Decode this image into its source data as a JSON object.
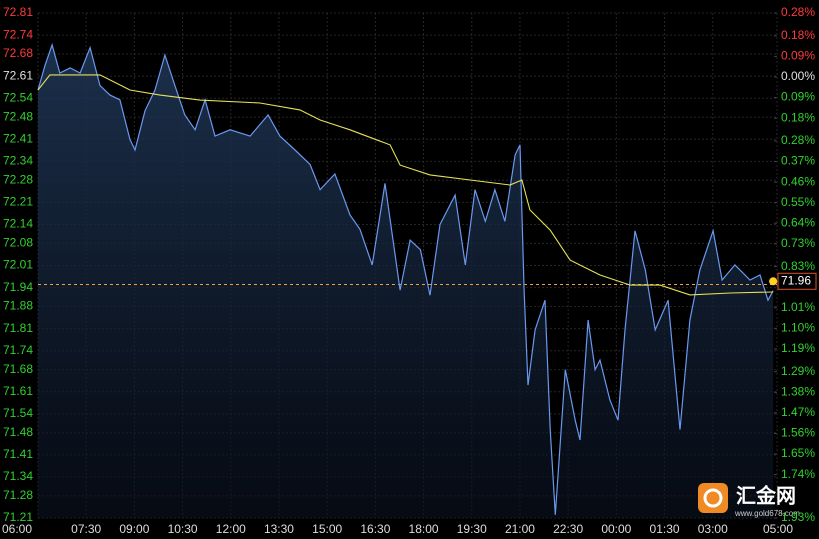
{
  "chart_data": {
    "type": "line",
    "xlim": [
      6,
      29
    ],
    "xticks": [
      {
        "value": 6,
        "label": "06:00"
      },
      {
        "value": 7.5,
        "label": "07:30"
      },
      {
        "value": 9,
        "label": "09:00"
      },
      {
        "value": 10.5,
        "label": "10:30"
      },
      {
        "value": 12,
        "label": "12:00"
      },
      {
        "value": 13.5,
        "label": "13:30"
      },
      {
        "value": 15,
        "label": "15:00"
      },
      {
        "value": 16.5,
        "label": "16:30"
      },
      {
        "value": 18,
        "label": "18:00"
      },
      {
        "value": 19.5,
        "label": "19:30"
      },
      {
        "value": 21,
        "label": "21:00"
      },
      {
        "value": 22.5,
        "label": "22:30"
      },
      {
        "value": 24,
        "label": "00:00"
      },
      {
        "value": 25.5,
        "label": "01:30"
      },
      {
        "value": 27,
        "label": "03:00"
      },
      {
        "value": 29,
        "label": "05:00"
      }
    ],
    "ylim": [
      71.21,
      72.81
    ],
    "yticks": [
      72.81,
      72.74,
      72.68,
      72.61,
      72.54,
      72.48,
      72.41,
      72.34,
      72.28,
      72.21,
      72.14,
      72.08,
      72.01,
      71.94,
      71.88,
      71.81,
      71.74,
      71.68,
      71.61,
      71.54,
      71.48,
      71.41,
      71.34,
      71.28,
      71.21
    ],
    "y2lim": [
      -1.93,
      0.28
    ],
    "y2ticks": [
      {
        "value": 0.28,
        "label": "0.28%"
      },
      {
        "value": 0.18,
        "label": "0.18%"
      },
      {
        "value": 0.09,
        "label": "0.09%"
      },
      {
        "value": 0,
        "label": "0.00%"
      },
      {
        "value": -0.09,
        "label": "0.09%"
      },
      {
        "value": -0.18,
        "label": "0.18%"
      },
      {
        "value": -0.28,
        "label": "0.28%"
      },
      {
        "value": -0.37,
        "label": "0.37%"
      },
      {
        "value": -0.46,
        "label": "0.46%"
      },
      {
        "value": -0.55,
        "label": "0.55%"
      },
      {
        "value": -0.64,
        "label": "0.64%"
      },
      {
        "value": -0.73,
        "label": "0.73%"
      },
      {
        "value": -0.83,
        "label": "0.83%"
      },
      {
        "value": -1.01,
        "label": "1.01%"
      },
      {
        "value": -1.1,
        "label": "1.10%"
      },
      {
        "value": -1.19,
        "label": "1.19%"
      },
      {
        "value": -1.29,
        "label": "1.29%"
      },
      {
        "value": -1.38,
        "label": "1.38%"
      },
      {
        "value": -1.47,
        "label": "1.47%"
      },
      {
        "value": -1.56,
        "label": "1.56%"
      },
      {
        "value": -1.65,
        "label": "1.65%"
      },
      {
        "value": -1.74,
        "label": "1.74%"
      },
      {
        "value": -1.93,
        "label": "1.93%"
      }
    ],
    "grid": true,
    "up_color": "#ff3b3b",
    "down_color": "#2fd22f",
    "flat_color": "#e0e0e0",
    "series": [
      {
        "name": "price",
        "color": "#6a98f0",
        "x": [
          6.0,
          6.22,
          6.44,
          6.68,
          7.0,
          7.31,
          7.62,
          7.93,
          8.24,
          8.55,
          8.86,
          9.02,
          9.33,
          9.64,
          9.95,
          10.26,
          10.57,
          10.89,
          11.2,
          11.51,
          11.98,
          12.6,
          13.16,
          13.53,
          14.0,
          14.47,
          14.78,
          15.24,
          15.71,
          16.02,
          16.4,
          16.8,
          17.27,
          17.58,
          17.9,
          18.2,
          18.51,
          18.98,
          19.3,
          19.6,
          19.92,
          20.22,
          20.53,
          20.85,
          21.0,
          21.13,
          21.25,
          21.47,
          21.78,
          21.94,
          22.1,
          22.41,
          22.72,
          22.87,
          23.12,
          23.34,
          23.49,
          23.8,
          24.05,
          24.27,
          24.58,
          24.9,
          25.21,
          25.61,
          25.98,
          26.29,
          26.6,
          27.01,
          27.29,
          27.69,
          28.16,
          28.47,
          28.72,
          28.88
        ],
        "values": [
          72.566,
          72.645,
          72.709,
          72.62,
          72.636,
          72.62,
          72.7,
          72.58,
          72.55,
          72.535,
          72.41,
          72.376,
          72.5,
          72.566,
          72.677,
          72.58,
          72.487,
          72.44,
          72.535,
          72.42,
          72.44,
          72.42,
          72.487,
          72.42,
          72.376,
          72.33,
          72.25,
          72.3,
          72.17,
          72.125,
          72.012,
          72.27,
          71.932,
          72.09,
          72.06,
          71.916,
          72.14,
          72.233,
          72.012,
          72.25,
          72.15,
          72.25,
          72.15,
          72.36,
          72.392,
          71.93,
          71.631,
          71.806,
          71.9,
          71.49,
          71.22,
          71.68,
          71.52,
          71.457,
          71.837,
          71.68,
          71.71,
          71.584,
          71.52,
          71.806,
          72.12,
          71.996,
          71.806,
          71.9,
          71.49,
          71.837,
          71.996,
          72.12,
          71.964,
          72.012,
          71.964,
          71.98,
          71.9,
          71.93
        ]
      },
      {
        "name": "average",
        "color": "#e6e25a",
        "x": [
          6.0,
          6.37,
          7.93,
          8.86,
          9.8,
          11.04,
          12.91,
          14.15,
          14.78,
          15.71,
          16.96,
          17.27,
          18.2,
          19.45,
          20.69,
          21.06,
          21.31,
          21.94,
          22.56,
          23.49,
          24.43,
          25.36,
          26.29,
          27.54,
          28.88
        ],
        "values": [
          72.566,
          72.614,
          72.614,
          72.566,
          72.55,
          72.534,
          72.525,
          72.503,
          72.471,
          72.44,
          72.392,
          72.328,
          72.297,
          72.281,
          72.265,
          72.281,
          72.186,
          72.122,
          72.027,
          71.98,
          71.948,
          71.948,
          71.917,
          71.923,
          71.926
        ]
      }
    ],
    "reference_line": 71.95,
    "last_price": 71.96,
    "watermark": {
      "brand": "汇金网",
      "site": "www.gold678.com"
    }
  }
}
